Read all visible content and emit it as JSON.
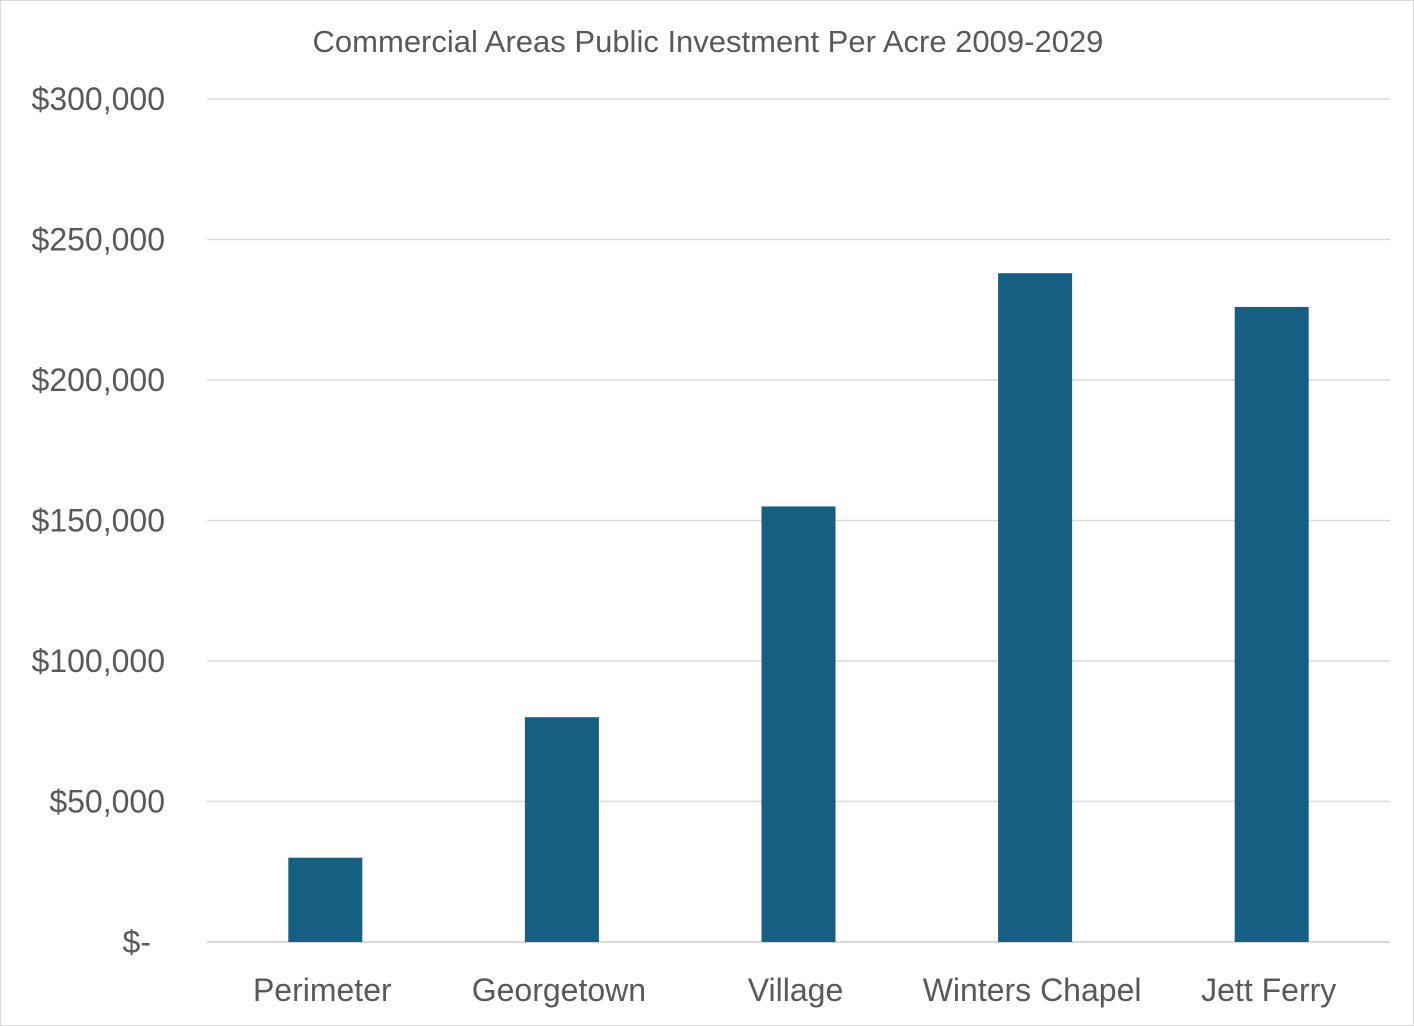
{
  "chart_data": {
    "type": "bar",
    "title": "Commercial Areas Public Investment Per Acre 2009-2029",
    "xlabel": "",
    "ylabel": "",
    "categories": [
      "Perimeter",
      "Georgetown",
      "Village",
      "Winters Chapel",
      "Jett Ferry"
    ],
    "values": [
      30000,
      80000,
      155000,
      238000,
      226000
    ],
    "ylim": [
      0,
      300000
    ],
    "yticks": [
      0,
      50000,
      100000,
      150000,
      200000,
      250000,
      300000
    ],
    "ytick_labels": [
      "$-",
      "$50,000",
      "$100,000",
      "$150,000",
      "$200,000",
      "$250,000",
      "$300,000"
    ],
    "grid": true,
    "legend": "none",
    "bar_color": "#156082"
  }
}
